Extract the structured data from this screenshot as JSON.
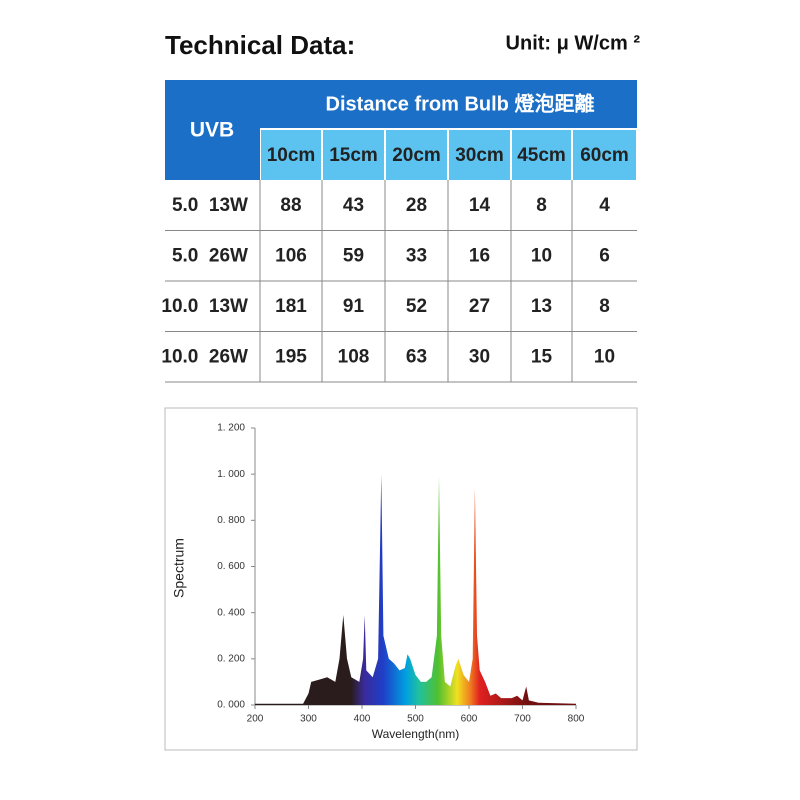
{
  "header": {
    "title": "Technical Data:",
    "unit": "Unit: μ W/cm ²"
  },
  "table": {
    "corner": "UVB",
    "group_header": "Distance from Bulb 燈泡距離",
    "columns": [
      "10cm",
      "15cm",
      "20cm",
      "30cm",
      "45cm",
      "60cm"
    ],
    "rows": [
      [
        "5.0  13W",
        88,
        43,
        28,
        14,
        8,
        4
      ],
      [
        "5.0  26W",
        106,
        59,
        33,
        16,
        10,
        6
      ],
      [
        "10.0  13W",
        181,
        91,
        52,
        27,
        13,
        8
      ],
      [
        "10.0  26W",
        195,
        108,
        63,
        30,
        15,
        10
      ]
    ]
  },
  "chart_data": {
    "type": "area",
    "x_label": "Wavelength(nm)",
    "y_label": "Spectrum",
    "x": [
      200,
      290,
      300,
      305,
      320,
      335,
      350,
      358,
      365,
      372,
      380,
      395,
      402,
      405,
      408,
      420,
      430,
      436,
      440,
      450,
      460,
      470,
      480,
      485,
      490,
      500,
      510,
      520,
      530,
      540,
      544,
      548,
      555,
      565,
      575,
      580,
      590,
      600,
      607,
      611,
      615,
      620,
      630,
      640,
      650,
      660,
      680,
      690,
      700,
      707,
      712,
      730,
      800
    ],
    "values": [
      0.005,
      0.005,
      0.05,
      0.1,
      0.11,
      0.12,
      0.1,
      0.2,
      0.39,
      0.2,
      0.12,
      0.1,
      0.2,
      0.39,
      0.15,
      0.12,
      0.2,
      1.0,
      0.3,
      0.2,
      0.18,
      0.15,
      0.16,
      0.22,
      0.2,
      0.13,
      0.1,
      0.1,
      0.12,
      0.3,
      0.99,
      0.3,
      0.1,
      0.08,
      0.17,
      0.2,
      0.13,
      0.1,
      0.2,
      0.94,
      0.3,
      0.15,
      0.1,
      0.04,
      0.05,
      0.03,
      0.03,
      0.04,
      0.02,
      0.08,
      0.02,
      0.01,
      0.005
    ],
    "xlim": [
      200,
      800
    ],
    "xticks": [
      200,
      300,
      400,
      500,
      600,
      700,
      800
    ],
    "ylim": [
      0,
      1.2
    ],
    "yticks": [
      {
        "value": 0,
        "label": "0. 000"
      },
      {
        "value": 0.2,
        "label": "0. 200"
      },
      {
        "value": 0.4,
        "label": "0. 400"
      },
      {
        "value": 0.6,
        "label": "0. 600"
      },
      {
        "value": 0.8,
        "label": "0. 800"
      },
      {
        "value": 1.0,
        "label": "1. 000"
      },
      {
        "value": 1.2,
        "label": "1. 200"
      }
    ]
  }
}
